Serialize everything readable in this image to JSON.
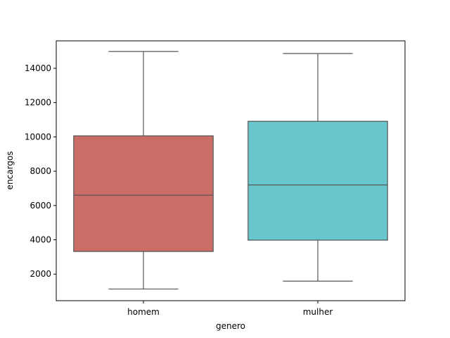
{
  "chart_data": {
    "type": "box",
    "title": "",
    "xlabel": "genero",
    "ylabel": "encargos",
    "categories": [
      "homem",
      "mulher"
    ],
    "ylim": [
      450,
      15600
    ],
    "yticks": [
      2000,
      4000,
      6000,
      8000,
      10000,
      12000,
      14000
    ],
    "ytick_labels": [
      "2000",
      "4000",
      "6000",
      "8000",
      "10000",
      "12000",
      "14000"
    ],
    "boxes": [
      {
        "category": "homem",
        "whisker_low": 1130,
        "q1": 3320,
        "median": 6600,
        "q3": 10060,
        "whisker_high": 14980,
        "color": "#c96d66"
      },
      {
        "category": "mulher",
        "whisker_low": 1590,
        "q1": 3980,
        "median": 7200,
        "q3": 10910,
        "whisker_high": 14860,
        "color": "#69c6cc"
      }
    ],
    "line_color": "#555555",
    "grid": false,
    "legend": "none"
  }
}
